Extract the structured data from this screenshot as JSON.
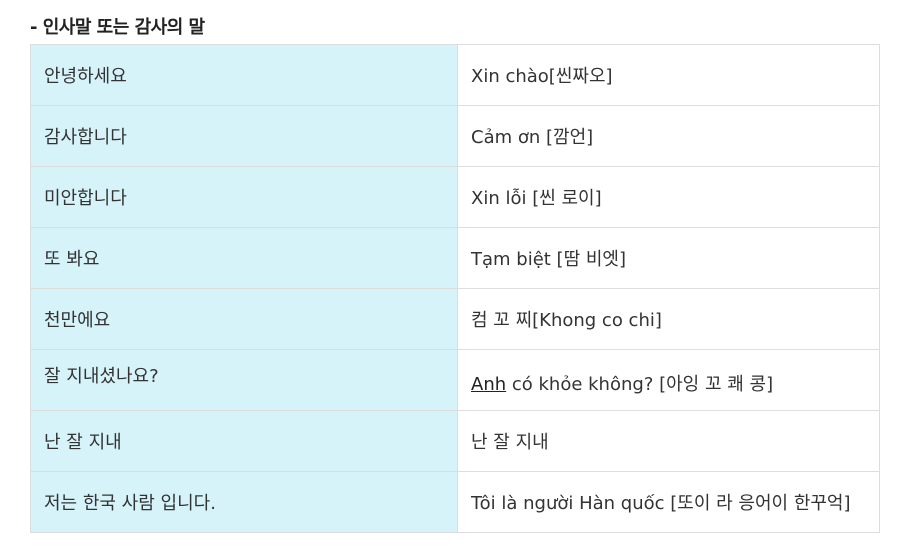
{
  "heading": "- 인사말 또는 감사의 말",
  "rows": [
    {
      "ko": "안녕하세요",
      "vi": "Xin chào[씬짜오]"
    },
    {
      "ko": "감사합니다",
      "vi": "Cảm ơn [깜언]"
    },
    {
      "ko": "미안합니다",
      "vi": "Xin lỗi [씬 로이]"
    },
    {
      "ko": "또 봐요",
      "vi": "Tạm biệt [땀 비엣]"
    },
    {
      "ko": "천만에요",
      "vi": "컴 꼬 찌[Khong co chi]"
    },
    {
      "ko": "잘 지내셨나요?",
      "vi_link": "Anh",
      "vi_rest": " có khỏe không? [아잉 꼬 쾌 콩]"
    },
    {
      "ko": "난 잘 지내",
      "vi": "난 잘 지내"
    },
    {
      "ko": "저는 한국 사람 입니다.",
      "vi": "Tôi là người Hàn quốc [또이 라 응어이 한꾸억]"
    }
  ]
}
